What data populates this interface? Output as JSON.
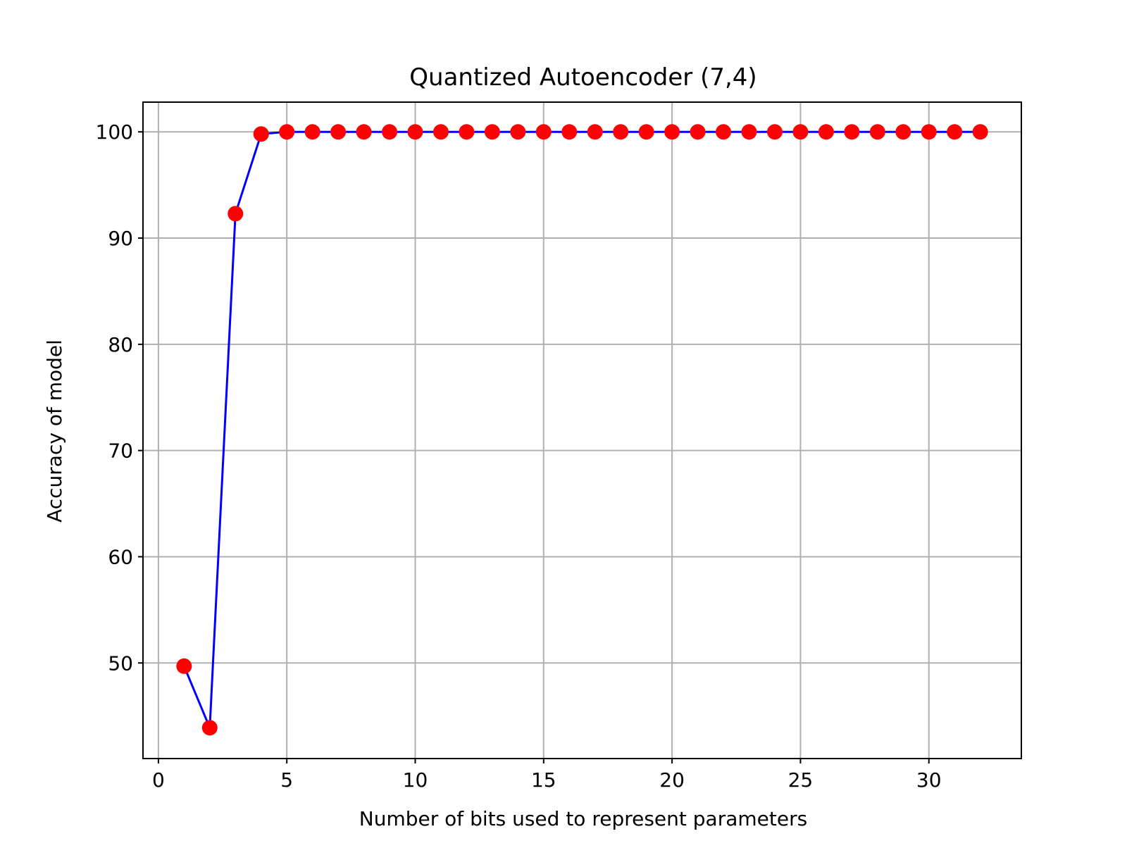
{
  "chart_data": {
    "type": "line",
    "title": "Quantized Autoencoder (7,4)",
    "xlabel": "Number of bits used to represent parameters",
    "ylabel": "Accuracy of model",
    "xlim": [
      -0.6,
      33.6
    ],
    "ylim": [
      41.0,
      102.8
    ],
    "grid": true,
    "x_ticks": [
      0,
      5,
      10,
      15,
      20,
      25,
      30
    ],
    "y_ticks": [
      50,
      60,
      70,
      80,
      90,
      100
    ],
    "x_tick_labels": [
      "0",
      "5",
      "10",
      "15",
      "20",
      "25",
      "30"
    ],
    "y_tick_labels": [
      "50",
      "60",
      "70",
      "80",
      "90",
      "100"
    ],
    "line_color": "#0000ff",
    "marker_color": "#ff0000",
    "grid_color": "#b0b0b0",
    "series": [
      {
        "x": [
          1,
          2,
          3,
          4,
          5,
          6,
          7,
          8,
          9,
          10,
          11,
          12,
          13,
          14,
          15,
          16,
          17,
          18,
          19,
          20,
          21,
          22,
          23,
          24,
          25,
          26,
          27,
          28,
          29,
          30,
          31,
          32
        ],
        "values": [
          49.7,
          43.9,
          92.3,
          99.8,
          100,
          100,
          100,
          100,
          100,
          100,
          100,
          100,
          100,
          100,
          100,
          100,
          100,
          100,
          100,
          100,
          100,
          100,
          100,
          100,
          100,
          100,
          100,
          100,
          100,
          100,
          100,
          100
        ]
      }
    ]
  }
}
